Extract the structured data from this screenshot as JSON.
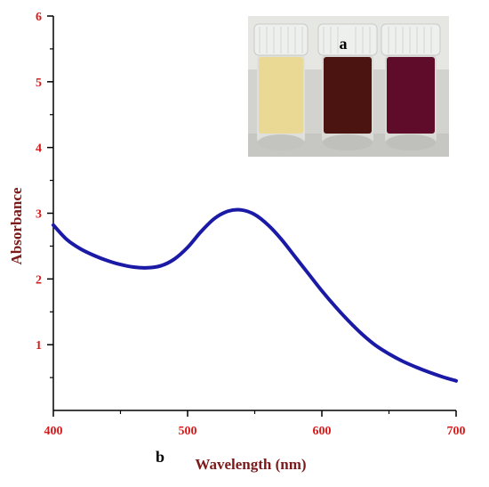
{
  "chart_data": {
    "type": "line",
    "xlabel": "Wavelength (nm)",
    "ylabel": "Absorbance",
    "xlim": [
      400,
      700
    ],
    "ylim": [
      0,
      6
    ],
    "x_ticks": [
      "400",
      "500",
      "600",
      "700"
    ],
    "y_ticks": [
      "1",
      "2",
      "3",
      "4",
      "5",
      "6"
    ],
    "grid": false,
    "panel_labels": {
      "photo": "a",
      "chart": "b"
    },
    "series": [
      {
        "color": "#1a1aa6",
        "x": [
          400,
          410,
          420,
          430,
          440,
          450,
          460,
          470,
          480,
          490,
          500,
          510,
          520,
          530,
          540,
          550,
          560,
          570,
          580,
          590,
          600,
          610,
          620,
          630,
          640,
          650,
          660,
          670,
          680,
          690,
          700
        ],
        "y": [
          2.82,
          2.6,
          2.46,
          2.36,
          2.28,
          2.22,
          2.18,
          2.17,
          2.2,
          2.3,
          2.48,
          2.72,
          2.92,
          3.03,
          3.05,
          2.98,
          2.82,
          2.6,
          2.34,
          2.08,
          1.82,
          1.58,
          1.36,
          1.16,
          0.99,
          0.86,
          0.75,
          0.66,
          0.58,
          0.51,
          0.45
        ]
      }
    ]
  },
  "colors": {
    "tick_label": "#d81b1b",
    "axis_title": "#7b1a1a",
    "line": "#1a1aa6",
    "axis": "#000000"
  },
  "photo": {
    "vial_colors": [
      "#e9d995",
      "#4c1410",
      "#5e0c2a"
    ],
    "cap_color": "#eef0ee"
  }
}
